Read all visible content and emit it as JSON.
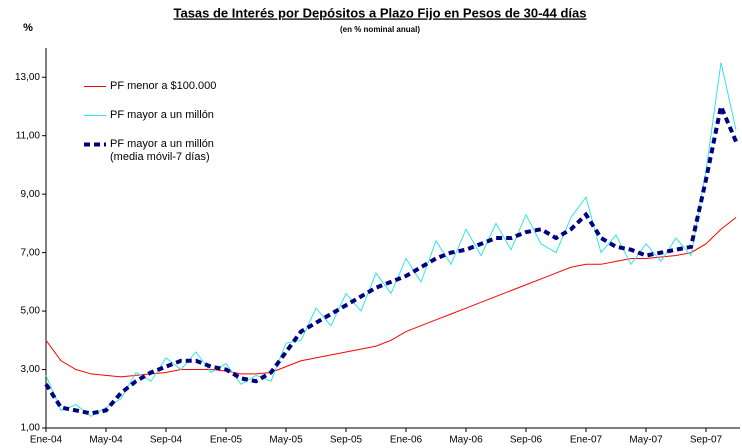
{
  "chart_data": {
    "type": "line",
    "title": "Tasas de Interés por Depósitos a Plazo Fijo en Pesos de 30-44 días",
    "subtitle": "(en % nominal anual)",
    "y_label": "%",
    "categories": [
      "Ene-04",
      null,
      null,
      null,
      "May-04",
      null,
      null,
      null,
      "Sep-04",
      null,
      null,
      null,
      "Ene-05",
      null,
      null,
      null,
      "May-05",
      null,
      null,
      null,
      "Sep-05",
      null,
      null,
      null,
      "Ene-06",
      null,
      null,
      null,
      "May-06",
      null,
      null,
      null,
      "Sep-06",
      null,
      null,
      null,
      "Ene-07",
      null,
      null,
      null,
      "May-07",
      null,
      null,
      null,
      "Sep-07",
      null,
      null
    ],
    "series": [
      {
        "name": "PF menor a $100.000",
        "color": "#ff0000",
        "values": [
          4.0,
          3.3,
          3.0,
          2.85,
          2.8,
          2.75,
          2.8,
          2.85,
          2.9,
          3.0,
          3.0,
          3.0,
          2.95,
          2.85,
          2.85,
          2.9,
          3.1,
          3.3,
          3.4,
          3.5,
          3.6,
          3.7,
          3.8,
          4.0,
          4.3,
          4.5,
          4.7,
          4.9,
          5.1,
          5.3,
          5.5,
          5.7,
          5.9,
          6.1,
          6.3,
          6.5,
          6.6,
          6.6,
          6.7,
          6.8,
          6.8,
          6.85,
          6.9,
          7.0,
          7.3,
          7.8,
          8.2
        ]
      },
      {
        "name": "PF mayor a un millón",
        "color": "#33e6e6",
        "values": [
          2.8,
          1.6,
          1.8,
          1.4,
          1.7,
          2.0,
          2.9,
          2.6,
          3.4,
          3.0,
          3.6,
          2.9,
          3.2,
          2.5,
          2.8,
          2.6,
          3.9,
          4.0,
          5.1,
          4.5,
          5.6,
          5.0,
          6.3,
          5.6,
          6.8,
          6.0,
          7.4,
          6.6,
          7.8,
          6.9,
          8.0,
          7.1,
          8.3,
          7.3,
          7.0,
          8.2,
          8.9,
          7.0,
          7.6,
          6.6,
          7.3,
          6.7,
          7.5,
          6.9,
          9.8,
          13.5,
          11.2
        ]
      },
      {
        "name": "PF mayor a un millón (media móvil-7 días)",
        "color": "#000080",
        "dashed": true,
        "values": [
          2.5,
          1.7,
          1.6,
          1.5,
          1.6,
          2.2,
          2.6,
          2.9,
          3.1,
          3.3,
          3.3,
          3.1,
          3.0,
          2.7,
          2.6,
          2.9,
          3.6,
          4.3,
          4.6,
          4.9,
          5.2,
          5.5,
          5.8,
          6.0,
          6.2,
          6.5,
          6.8,
          7.0,
          7.1,
          7.3,
          7.5,
          7.5,
          7.7,
          7.8,
          7.5,
          7.8,
          8.3,
          7.5,
          7.2,
          7.1,
          6.9,
          7.0,
          7.1,
          7.2,
          9.5,
          12.0,
          10.8
        ]
      }
    ],
    "ylim": [
      1,
      14
    ],
    "yticks": [
      {
        "value": 1,
        "label": "1,00"
      },
      {
        "value": 3,
        "label": "3,00"
      },
      {
        "value": 5,
        "label": "5,00"
      },
      {
        "value": 7,
        "label": "7,00"
      },
      {
        "value": 9,
        "label": "9,00"
      },
      {
        "value": 11,
        "label": "11,00"
      },
      {
        "value": 13,
        "label": "13,00"
      }
    ],
    "grid": false
  }
}
